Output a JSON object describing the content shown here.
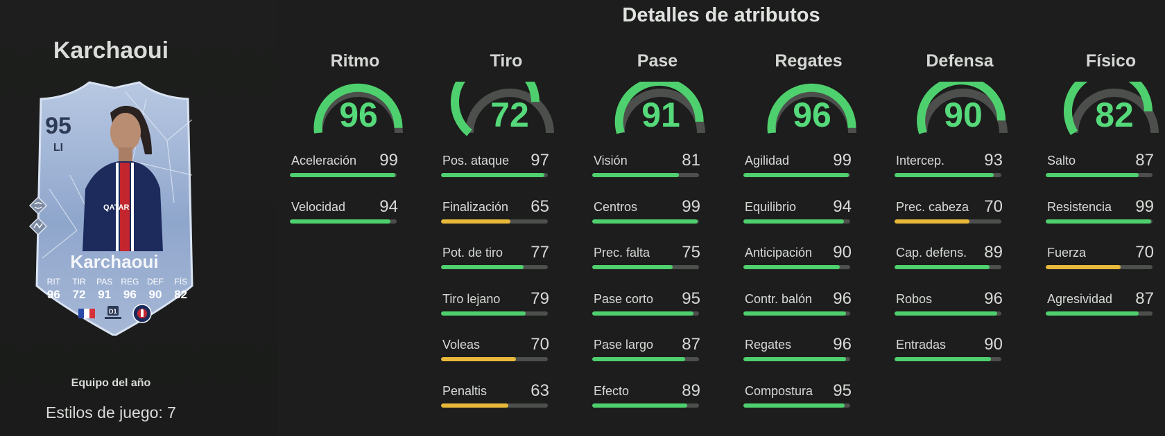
{
  "player": {
    "name": "Karchaoui",
    "card": {
      "rating": "95",
      "position": "LI",
      "name": "Karchaoui",
      "stat_labels": [
        "RIT",
        "TIR",
        "PAS",
        "REG",
        "DEF",
        "FÍS"
      ],
      "stat_values": [
        "96",
        "72",
        "91",
        "96",
        "90",
        "82"
      ]
    },
    "team_label": "Equipo del año",
    "playstyles": "Estilos de juego: 7"
  },
  "details_title": "Detalles de atributos",
  "colors": {
    "high": "#4fd06e",
    "mid": "#e8b83a",
    "track": "#4c4f4c",
    "gauge_text": "#55d97a"
  },
  "groups": [
    {
      "name": "Ritmo",
      "value": 96,
      "attributes": [
        {
          "name": "Aceleración",
          "value": 99
        },
        {
          "name": "Velocidad",
          "value": 94
        }
      ]
    },
    {
      "name": "Tiro",
      "value": 72,
      "attributes": [
        {
          "name": "Pos. ataque",
          "value": 97
        },
        {
          "name": "Finalización",
          "value": 65
        },
        {
          "name": "Pot. de tiro",
          "value": 77
        },
        {
          "name": "Tiro lejano",
          "value": 79
        },
        {
          "name": "Voleas",
          "value": 70
        },
        {
          "name": "Penaltis",
          "value": 63
        }
      ]
    },
    {
      "name": "Pase",
      "value": 91,
      "attributes": [
        {
          "name": "Visión",
          "value": 81
        },
        {
          "name": "Centros",
          "value": 99
        },
        {
          "name": "Prec. falta",
          "value": 75
        },
        {
          "name": "Pase corto",
          "value": 95
        },
        {
          "name": "Pase largo",
          "value": 87
        },
        {
          "name": "Efecto",
          "value": 89
        }
      ]
    },
    {
      "name": "Regates",
      "value": 96,
      "attributes": [
        {
          "name": "Agilidad",
          "value": 99
        },
        {
          "name": "Equilibrio",
          "value": 94
        },
        {
          "name": "Anticipación",
          "value": 90
        },
        {
          "name": "Contr. balón",
          "value": 96
        },
        {
          "name": "Regates",
          "value": 96
        },
        {
          "name": "Compostura",
          "value": 95
        }
      ]
    },
    {
      "name": "Defensa",
      "value": 90,
      "attributes": [
        {
          "name": "Intercep.",
          "value": 93
        },
        {
          "name": "Prec. cabeza",
          "value": 70
        },
        {
          "name": "Cap. defens.",
          "value": 89
        },
        {
          "name": "Robos",
          "value": 96
        },
        {
          "name": "Entradas",
          "value": 90
        }
      ]
    },
    {
      "name": "Físico",
      "value": 82,
      "attributes": [
        {
          "name": "Salto",
          "value": 87
        },
        {
          "name": "Resistencia",
          "value": 99
        },
        {
          "name": "Fuerza",
          "value": 70
        },
        {
          "name": "Agresividad",
          "value": 87
        }
      ]
    }
  ]
}
